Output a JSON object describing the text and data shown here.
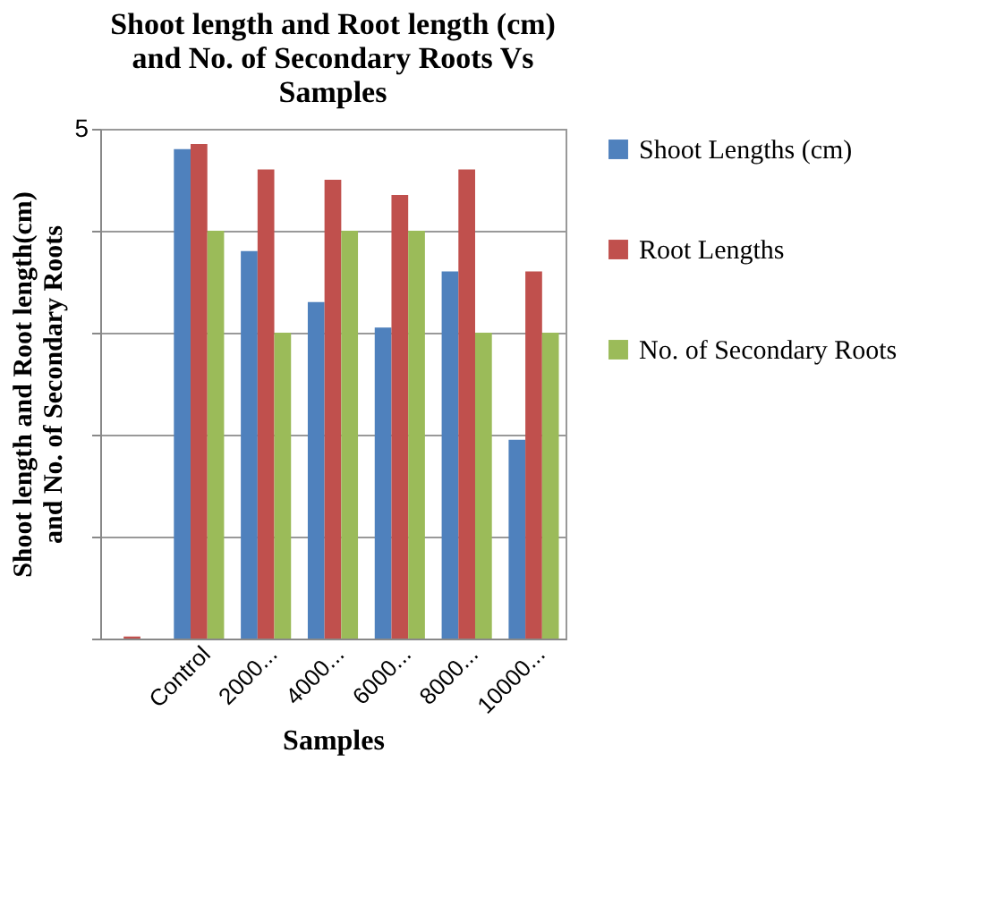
{
  "chart_data": {
    "type": "bar",
    "title": "Shoot length and Root length (cm) and No. of Secondary Roots Vs Samples",
    "xlabel": "Samples",
    "ylabel": "Shoot length and Root length(cm) and No. of Secondary Roots",
    "categories": [
      null,
      "Control",
      "2000...",
      "4000...",
      "6000...",
      "8000...",
      "10000..."
    ],
    "series": [
      {
        "name": "Shoot Lengths (cm)",
        "color": "#4f81bd",
        "values": [
          0,
          4.8,
          3.8,
          3.3,
          3.05,
          3.6,
          1.95
        ]
      },
      {
        "name": "Root Lengths",
        "color": "#c0504d",
        "values": [
          0.02,
          4.85,
          4.6,
          4.5,
          4.35,
          4.6,
          3.6
        ]
      },
      {
        "name": "No. of Secondary Roots",
        "color": "#9bbb59",
        "values": [
          0,
          4.0,
          3.0,
          4.0,
          4.0,
          3.0,
          3.0
        ]
      }
    ],
    "ylim": [
      0,
      5
    ],
    "yticks": [
      {
        "value": 0,
        "label": null
      },
      {
        "value": 1,
        "label": null
      },
      {
        "value": 2,
        "label": null
      },
      {
        "value": 3,
        "label": null
      },
      {
        "value": 4,
        "label": null
      },
      5
    ],
    "grid": "y",
    "legend": "right"
  }
}
